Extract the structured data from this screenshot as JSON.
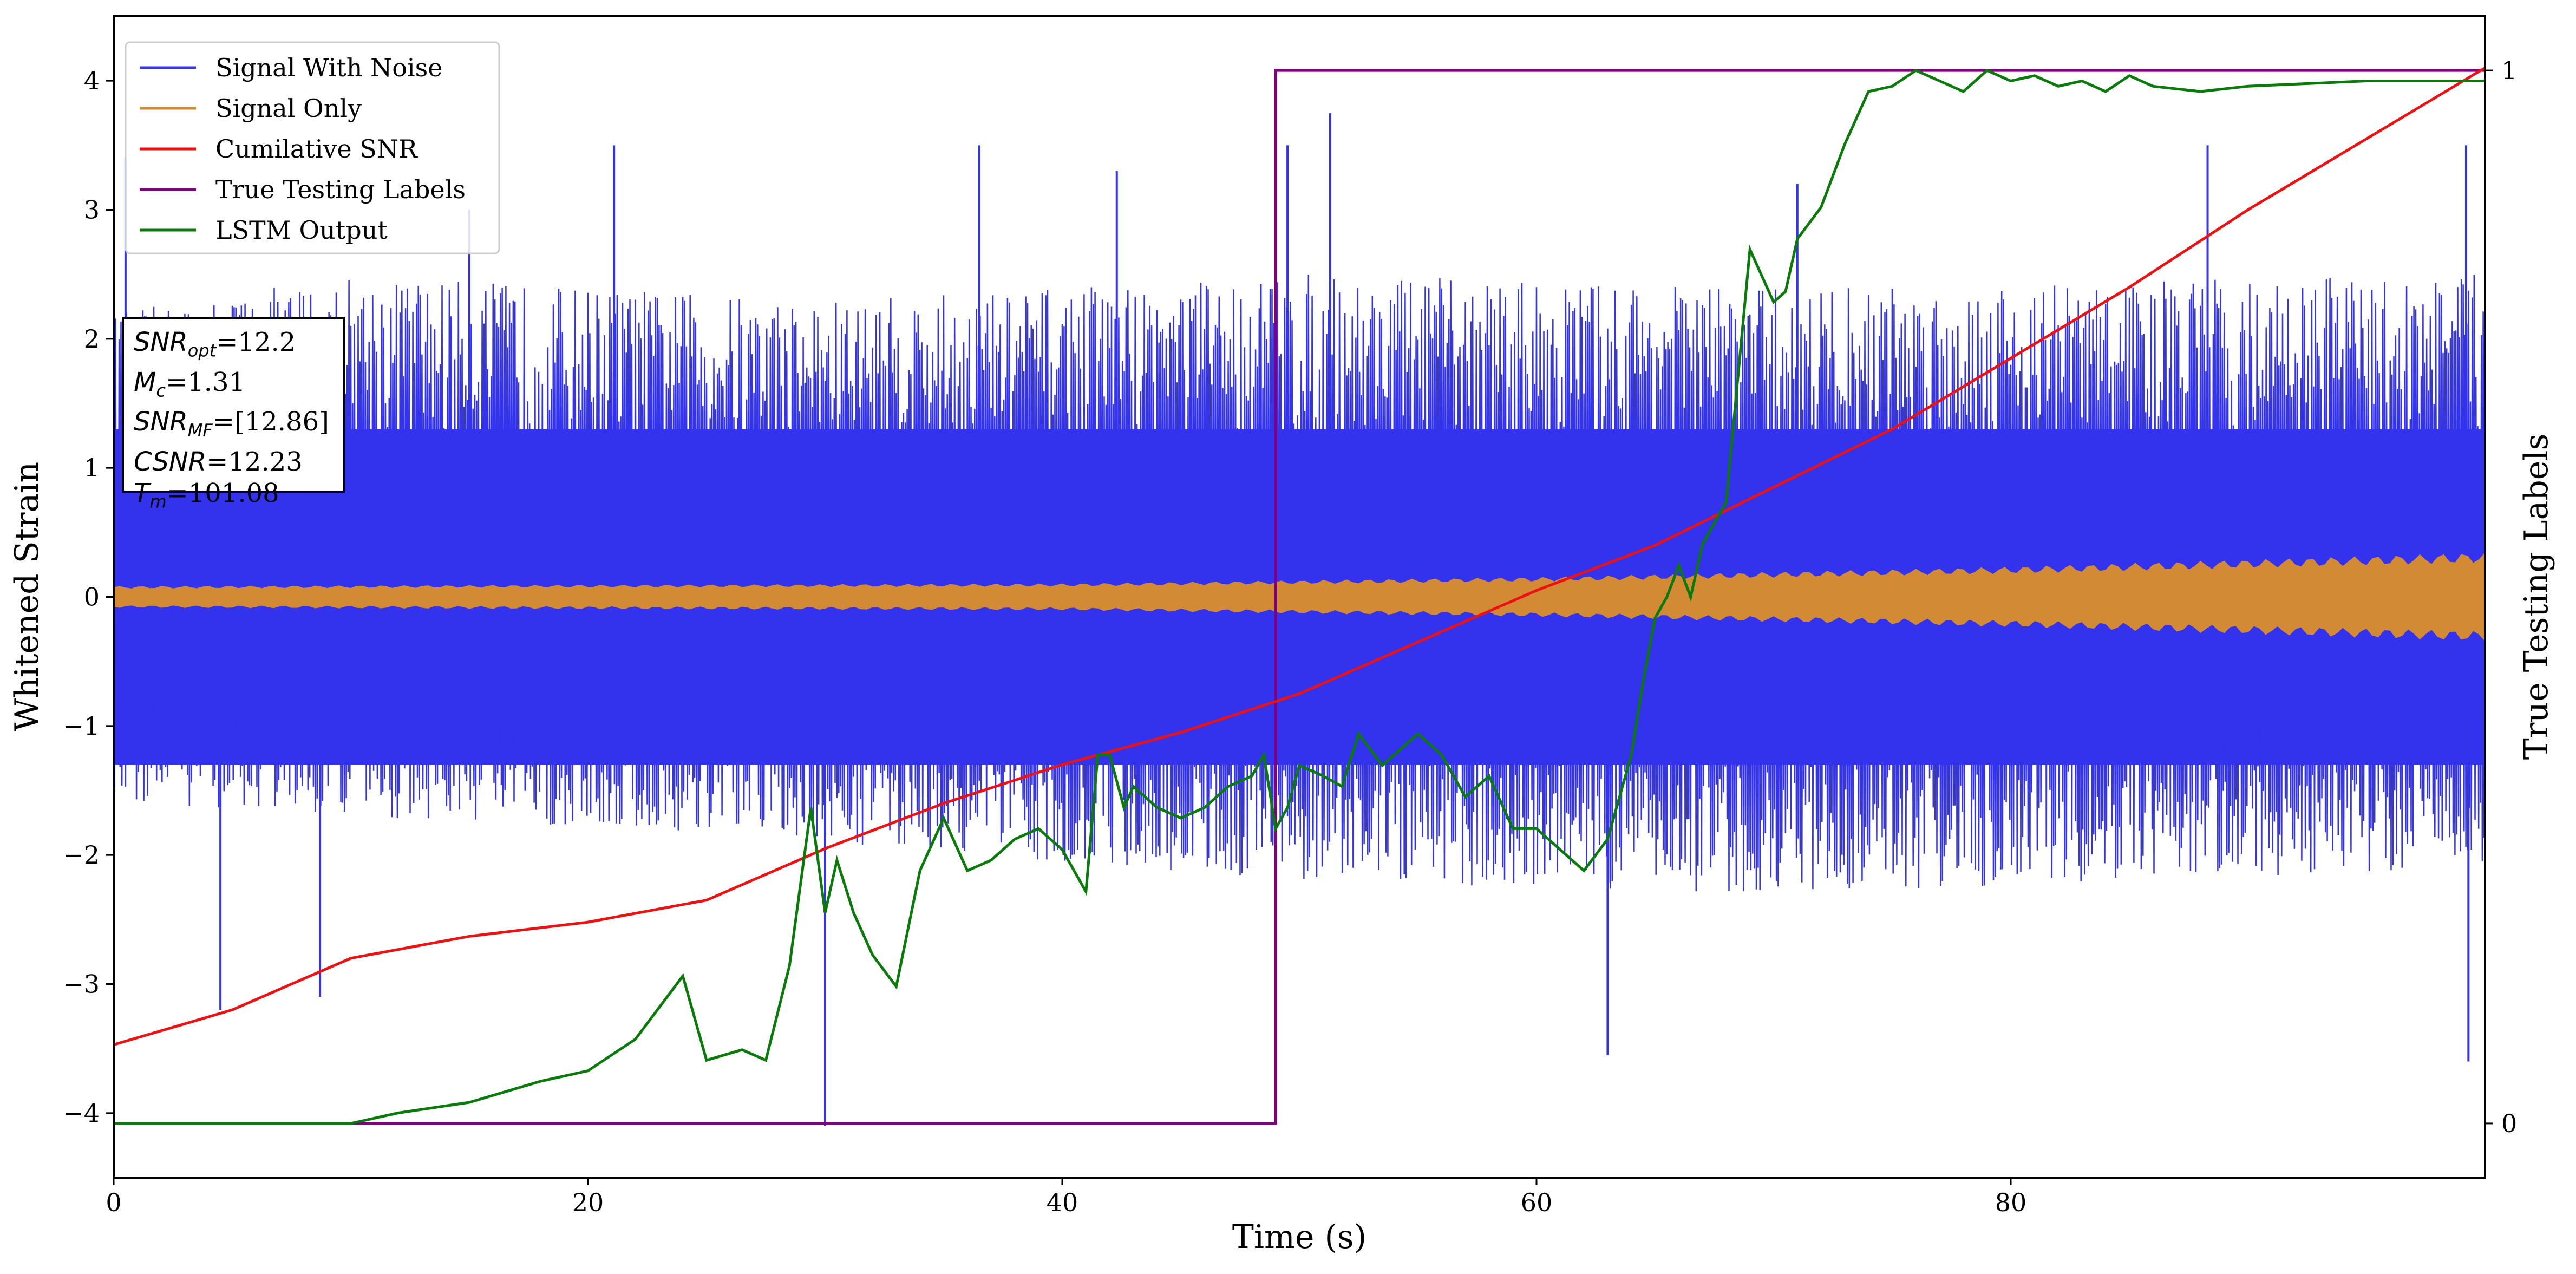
{
  "chart_data": {
    "type": "line",
    "title": "",
    "xlabel": "Time (s)",
    "ylabel": "Whitened Strain",
    "ylabel_right": "True Testing Labels",
    "xlim": [
      0,
      100
    ],
    "ylim": [
      -4.5,
      4.5
    ],
    "xticks": [
      0,
      20,
      40,
      60,
      80
    ],
    "xtick_labels": [
      "0",
      "20",
      "40",
      "60",
      "80"
    ],
    "yticks": [
      -4,
      -3,
      -2,
      -1,
      0,
      1,
      2,
      3,
      4
    ],
    "ytick_labels": [
      "−4",
      "−3",
      "−2",
      "−1",
      "0",
      "1",
      "2",
      "3",
      "4"
    ],
    "right_ticks": [
      0,
      1
    ],
    "right_tick_labels": [
      "0",
      "1"
    ],
    "right_label_range": [
      -4.08,
      4.08
    ],
    "grid": false,
    "legend_position": "top-left",
    "legend": [
      "Signal With Noise",
      "Signal Only",
      "Cumilative SNR",
      "True Testing Labels",
      "LSTM Output"
    ],
    "series": [
      {
        "name": "Signal With Noise",
        "color": "#3333ee",
        "kind": "noise",
        "envelope_high": [
          [
            0,
            2.2
          ],
          [
            10,
            2.5
          ],
          [
            30,
            2.3
          ],
          [
            50,
            2.5
          ],
          [
            70,
            2.4
          ],
          [
            100,
            2.5
          ]
        ],
        "envelope_low": [
          [
            0,
            -1.6
          ],
          [
            30,
            -1.9
          ],
          [
            50,
            -2.2
          ],
          [
            70,
            -2.3
          ],
          [
            100,
            -2.1
          ]
        ],
        "dense_band": [
          -1.3,
          1.3
        ],
        "spikes": [
          [
            0.5,
            3.4
          ],
          [
            4.5,
            -3.2
          ],
          [
            8.7,
            -3.1
          ],
          [
            15,
            3.0
          ],
          [
            21.1,
            3.5
          ],
          [
            30,
            -4.1
          ],
          [
            36.5,
            3.5
          ],
          [
            42.3,
            3.3
          ],
          [
            49.5,
            3.5
          ],
          [
            51.3,
            3.75
          ],
          [
            63,
            -3.55
          ],
          [
            71,
            3.2
          ],
          [
            88.3,
            3.5
          ],
          [
            99.2,
            3.5
          ],
          [
            99.3,
            -3.6
          ]
        ]
      },
      {
        "name": "Signal Only",
        "color": "#d38a35",
        "kind": "band",
        "amplitude": [
          [
            0,
            0.08
          ],
          [
            20,
            0.09
          ],
          [
            40,
            0.1
          ],
          [
            60,
            0.15
          ],
          [
            80,
            0.23
          ],
          [
            100,
            0.34
          ]
        ]
      },
      {
        "name": "Cumilative SNR",
        "color": "#ee1111",
        "x": [
          0,
          5,
          10,
          15,
          20,
          25,
          30,
          35,
          40,
          45,
          50,
          55,
          60,
          65,
          70,
          75,
          80,
          85,
          90,
          95,
          100
        ],
        "y": [
          -3.47,
          -3.2,
          -2.8,
          -2.63,
          -2.52,
          -2.35,
          -1.95,
          -1.6,
          -1.3,
          -1.05,
          -0.75,
          -0.35,
          0.05,
          0.4,
          0.85,
          1.3,
          1.85,
          2.4,
          3.0,
          3.55,
          4.1
        ]
      },
      {
        "name": "True Testing Labels",
        "color": "#800080",
        "x": [
          0,
          49.0,
          49.0,
          100
        ],
        "y": [
          0,
          0,
          1,
          1
        ]
      },
      {
        "name": "LSTM Output",
        "color": "#0a7a0a",
        "x": [
          0,
          5,
          10,
          12,
          15,
          18,
          20,
          22,
          24,
          25,
          26.5,
          27.5,
          28.5,
          29.4,
          30,
          30.5,
          31.2,
          32,
          33,
          34,
          35,
          36,
          37,
          38,
          39,
          40,
          41,
          41.5,
          42,
          42.6,
          43,
          44,
          45,
          46,
          47,
          48,
          48.5,
          49,
          49.5,
          50,
          51,
          51.8,
          52.5,
          53.5,
          55,
          56,
          57,
          58,
          59,
          60,
          61,
          62,
          63,
          64,
          64.5,
          65,
          65.5,
          66,
          66.5,
          67,
          68,
          69,
          70,
          70.5,
          71,
          72,
          73,
          74,
          75,
          76,
          77,
          78,
          79,
          80,
          81,
          82,
          83,
          84,
          85,
          86,
          88,
          90,
          95,
          100
        ],
        "y": [
          0,
          0,
          0,
          0.01,
          0.02,
          0.04,
          0.05,
          0.08,
          0.14,
          0.06,
          0.07,
          0.06,
          0.15,
          0.3,
          0.2,
          0.25,
          0.2,
          0.16,
          0.13,
          0.24,
          0.29,
          0.24,
          0.25,
          0.27,
          0.28,
          0.26,
          0.22,
          0.35,
          0.35,
          0.3,
          0.32,
          0.3,
          0.29,
          0.3,
          0.32,
          0.33,
          0.35,
          0.28,
          0.3,
          0.34,
          0.33,
          0.32,
          0.37,
          0.34,
          0.37,
          0.35,
          0.31,
          0.33,
          0.28,
          0.28,
          0.26,
          0.24,
          0.27,
          0.35,
          0.42,
          0.48,
          0.5,
          0.53,
          0.5,
          0.55,
          0.59,
          0.83,
          0.78,
          0.79,
          0.84,
          0.87,
          0.93,
          0.98,
          0.985,
          1.0,
          0.99,
          0.98,
          1.0,
          0.99,
          0.995,
          0.985,
          0.99,
          0.98,
          0.995,
          0.985,
          0.98,
          0.985,
          0.99,
          0.99
        ]
      }
    ]
  },
  "stats_box": {
    "snr_opt_label": "SNR",
    "snr_opt_sub": "opt",
    "snr_opt_value": "=12.2",
    "mc_label": "M",
    "mc_sub": "c",
    "mc_value": "=1.31",
    "snr_mf_label": "SNR",
    "snr_mf_sub": "MF",
    "snr_mf_value": "=[12.86]",
    "csnr_label": "CSNR",
    "csnr_value": "=12.23",
    "tm_label": "T",
    "tm_sub": "m",
    "tm_value": "=101.08"
  }
}
